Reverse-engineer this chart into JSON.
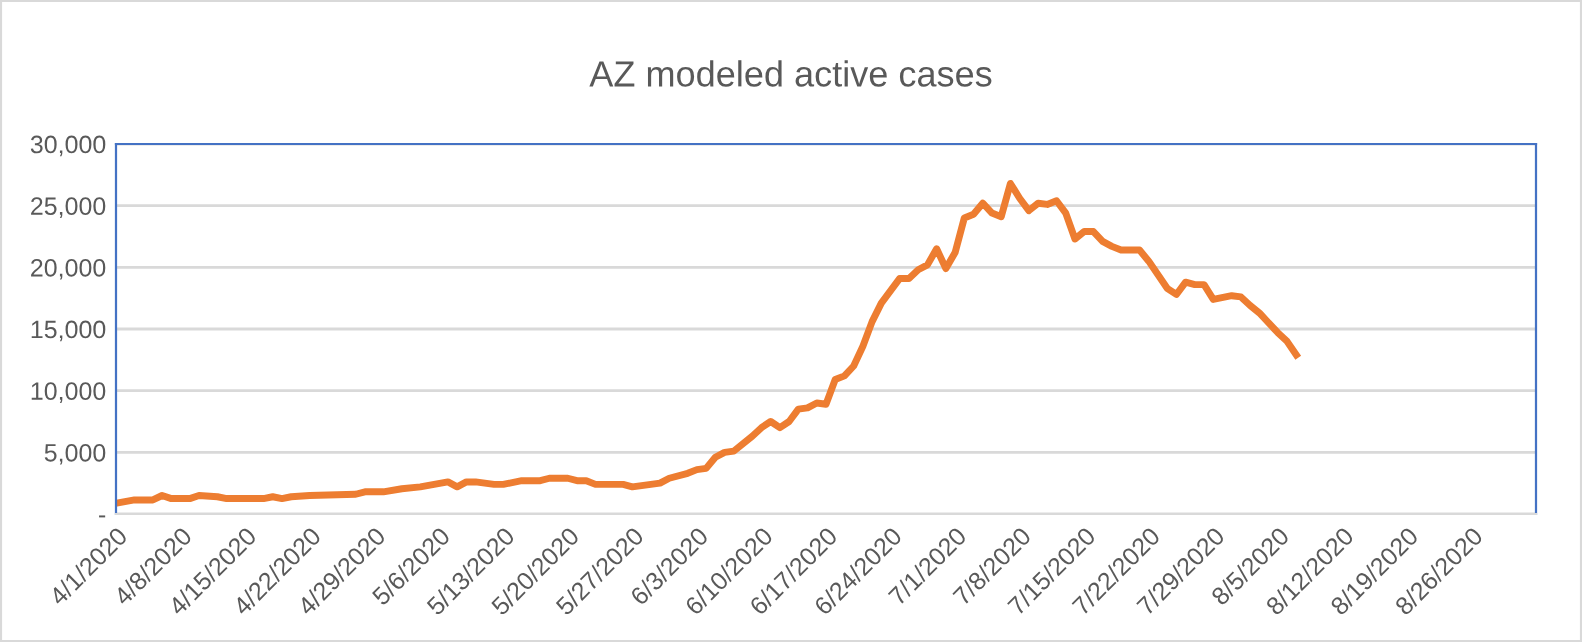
{
  "chart_data": {
    "type": "line",
    "title": "AZ modeled active cases",
    "x": [
      "2020-04-01",
      "2020-04-03",
      "2020-04-05",
      "2020-04-06",
      "2020-04-07",
      "2020-04-09",
      "2020-04-10",
      "2020-04-12",
      "2020-04-13",
      "2020-04-17",
      "2020-04-18",
      "2020-04-19",
      "2020-04-20",
      "2020-04-22",
      "2020-04-27",
      "2020-04-28",
      "2020-04-30",
      "2020-05-02",
      "2020-05-04",
      "2020-05-07",
      "2020-05-08",
      "2020-05-09",
      "2020-05-10",
      "2020-05-12",
      "2020-05-13",
      "2020-05-15",
      "2020-05-17",
      "2020-05-18",
      "2020-05-20",
      "2020-05-21",
      "2020-05-22",
      "2020-05-23",
      "2020-05-26",
      "2020-05-27",
      "2020-05-29",
      "2020-05-30",
      "2020-05-31",
      "2020-06-02",
      "2020-06-03",
      "2020-06-04",
      "2020-06-05",
      "2020-06-06",
      "2020-06-07",
      "2020-06-09",
      "2020-06-10",
      "2020-06-11",
      "2020-06-12",
      "2020-06-13",
      "2020-06-14",
      "2020-06-15",
      "2020-06-16",
      "2020-06-17",
      "2020-06-18",
      "2020-06-19",
      "2020-06-20",
      "2020-06-21",
      "2020-06-22",
      "2020-06-23",
      "2020-06-25",
      "2020-06-26",
      "2020-06-27",
      "2020-06-28",
      "2020-06-29",
      "2020-06-30",
      "2020-07-01",
      "2020-07-02",
      "2020-07-03",
      "2020-07-04",
      "2020-07-05",
      "2020-07-06",
      "2020-07-07",
      "2020-07-08",
      "2020-07-09",
      "2020-07-10",
      "2020-07-11",
      "2020-07-12",
      "2020-07-13",
      "2020-07-14",
      "2020-07-15",
      "2020-07-16",
      "2020-07-17",
      "2020-07-18",
      "2020-07-19",
      "2020-07-21",
      "2020-07-22",
      "2020-07-24",
      "2020-07-25",
      "2020-07-26",
      "2020-07-27",
      "2020-07-28",
      "2020-07-29",
      "2020-07-31",
      "2020-08-01",
      "2020-08-02",
      "2020-08-03",
      "2020-08-05",
      "2020-08-06",
      "2020-08-07"
    ],
    "series": [
      {
        "color": "#ed7d31",
        "values": [
          870,
          1140,
          1140,
          1500,
          1250,
          1250,
          1500,
          1400,
          1250,
          1250,
          1400,
          1250,
          1400,
          1500,
          1600,
          1800,
          1800,
          2050,
          2200,
          2600,
          2200,
          2600,
          2600,
          2400,
          2400,
          2700,
          2700,
          2900,
          2900,
          2700,
          2700,
          2400,
          2400,
          2200,
          2400,
          2500,
          2900,
          3300,
          3600,
          3700,
          4600,
          5000,
          5100,
          6300,
          7000,
          7500,
          7000,
          7500,
          8500,
          8600,
          9000,
          8900,
          10900,
          11200,
          12000,
          13600,
          15600,
          17100,
          19100,
          19100,
          19800,
          20200,
          21500,
          19900,
          21200,
          24000,
          24300,
          25200,
          24400,
          24100,
          26800,
          25600,
          24600,
          25200,
          25100,
          25400,
          24400,
          22300,
          22900,
          22900,
          22100,
          21700,
          21400,
          21400,
          20500,
          18300,
          17800,
          18800,
          18600,
          18600,
          17400,
          17700,
          17600,
          16900,
          16300,
          14700,
          14000,
          12900
        ]
      }
    ],
    "xlim": [
      "2020-04-01",
      "2020-09-02"
    ],
    "xticks": [
      {
        "value": "2020-04-01",
        "label": "4/1/2020"
      },
      {
        "value": "2020-04-08",
        "label": "4/8/2020"
      },
      {
        "value": "2020-04-15",
        "label": "4/15/2020"
      },
      {
        "value": "2020-04-22",
        "label": "4/22/2020"
      },
      {
        "value": "2020-04-29",
        "label": "4/29/2020"
      },
      {
        "value": "2020-05-06",
        "label": "5/6/2020"
      },
      {
        "value": "2020-05-13",
        "label": "5/13/2020"
      },
      {
        "value": "2020-05-20",
        "label": "5/20/2020"
      },
      {
        "value": "2020-05-27",
        "label": "5/27/2020"
      },
      {
        "value": "2020-06-03",
        "label": "6/3/2020"
      },
      {
        "value": "2020-06-10",
        "label": "6/10/2020"
      },
      {
        "value": "2020-06-17",
        "label": "6/17/2020"
      },
      {
        "value": "2020-06-24",
        "label": "6/24/2020"
      },
      {
        "value": "2020-07-01",
        "label": "7/1/2020"
      },
      {
        "value": "2020-07-08",
        "label": "7/8/2020"
      },
      {
        "value": "2020-07-15",
        "label": "7/15/2020"
      },
      {
        "value": "2020-07-22",
        "label": "7/22/2020"
      },
      {
        "value": "2020-07-29",
        "label": "7/29/2020"
      },
      {
        "value": "2020-08-05",
        "label": "8/5/2020"
      },
      {
        "value": "2020-08-12",
        "label": "8/12/2020"
      },
      {
        "value": "2020-08-19",
        "label": "8/19/2020"
      },
      {
        "value": "2020-08-26",
        "label": "8/26/2020"
      }
    ],
    "ylim": [
      0,
      30000
    ],
    "yticks": [
      {
        "value": 0,
        "label": "-"
      },
      {
        "value": 5000,
        "label": "5,000"
      },
      {
        "value": 10000,
        "label": "10,000"
      },
      {
        "value": 15000,
        "label": "15,000"
      },
      {
        "value": 20000,
        "label": "20,000"
      },
      {
        "value": 25000,
        "label": "25,000"
      },
      {
        "value": 30000,
        "label": "30,000"
      }
    ],
    "grid": "y",
    "marker": "none",
    "line_style": "solid"
  }
}
